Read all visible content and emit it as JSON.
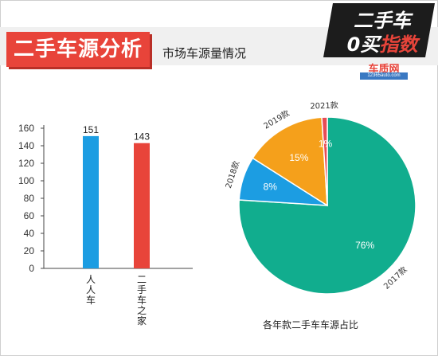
{
  "header": {
    "title": "二手车源分析",
    "subtitle": "市场车源量情况"
  },
  "logo": {
    "line1": "二手车",
    "line2_a": "0",
    "line2_b": "买",
    "line2_c": "指数",
    "site": "车质网",
    "url": "12365auto.com"
  },
  "colors": {
    "bar_blue": "#1c9de2",
    "bar_red": "#e8443a",
    "pie_2017": "#11ad8e",
    "pie_2018": "#1c9de2",
    "pie_2019": "#f5a01b",
    "pie_2021": "#e84c55",
    "header_red": "#e8443a"
  },
  "chart_data": [
    {
      "type": "bar",
      "categories": [
        "人人车",
        "二手车之家"
      ],
      "values": [
        151,
        143
      ],
      "data_labels": [
        "151",
        "143"
      ],
      "ylim": [
        0,
        160
      ],
      "yticks": [
        "0",
        "20",
        "40",
        "60",
        "80",
        "100",
        "120",
        "140",
        "160"
      ],
      "grid": false,
      "title": "",
      "xlabel": "",
      "ylabel": ""
    },
    {
      "type": "pie",
      "title": "各年款二手车车源占比",
      "slices": [
        {
          "label": "2017款",
          "value": 76,
          "pct_label": "76%"
        },
        {
          "label": "2018款",
          "value": 8,
          "pct_label": "8%"
        },
        {
          "label": "2019款",
          "value": 15,
          "pct_label": "15%"
        },
        {
          "label": "2021款",
          "value": 1,
          "pct_label": "1%"
        }
      ]
    }
  ]
}
